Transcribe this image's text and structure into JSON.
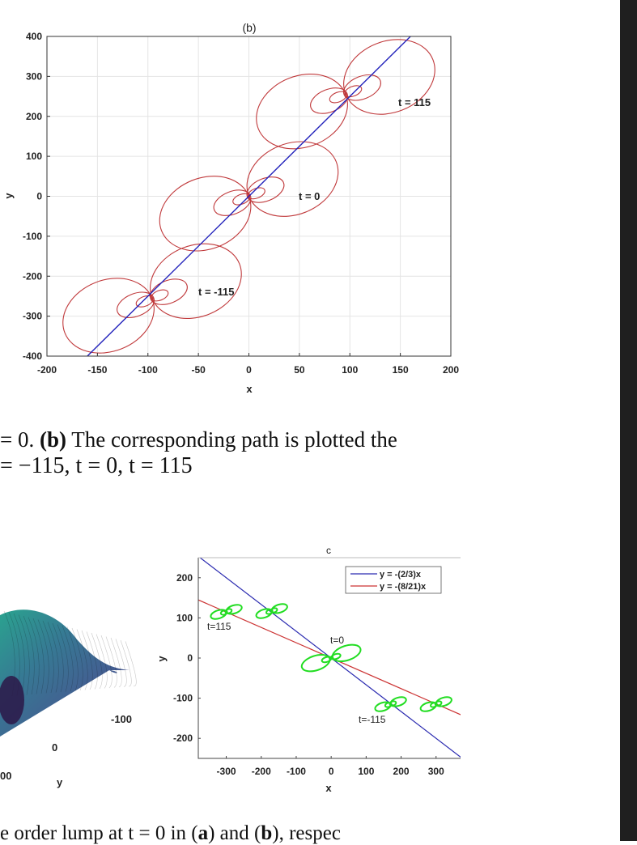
{
  "captions": {
    "line1_a": "= 0.",
    "line1_b": "(b)",
    "line1_c": " The corresponding path is plotted the",
    "line2": "= −115, t = 0, t = 115",
    "line3_a": "e order lump at t = 0 in (",
    "line3_b": "a",
    "line3_c": ") and (",
    "line3_d": "b",
    "line3_e": "), respec"
  },
  "surface_fragment": {
    "tick_labels": [
      "-100",
      "0",
      "00"
    ],
    "axis_label": "y"
  },
  "chart_data": [
    {
      "type": "line",
      "title": "(b)",
      "xlabel": "x",
      "ylabel": "y",
      "xlim": [
        -200,
        200
      ],
      "ylim": [
        -400,
        400
      ],
      "xticks": [
        -200,
        -150,
        -100,
        -50,
        0,
        50,
        100,
        150,
        200
      ],
      "yticks": [
        400,
        300,
        200,
        100,
        0,
        -100,
        -200,
        -300,
        -400
      ],
      "grid": true,
      "series": [
        {
          "color": "#2222bb",
          "x": [
            -200,
            200
          ],
          "y": [
            -500,
            500
          ]
        }
      ],
      "lumps": [
        {
          "label": "t = -115",
          "cx": -95.8,
          "cy": -255.5,
          "color": "#c0393b"
        },
        {
          "label": "t = 0",
          "cx": 0,
          "cy": 0,
          "color": "#c0393b"
        },
        {
          "label": "t = 115",
          "cx": 95.8,
          "cy": 255.5,
          "color": "#c0393b"
        }
      ],
      "annotations": [
        "t = -115",
        "t = 0",
        "t = 115"
      ]
    },
    {
      "type": "line",
      "title": "c",
      "xlabel": "x",
      "ylabel": "y",
      "xlim": [
        -380,
        370
      ],
      "ylim": [
        -250,
        250
      ],
      "xticks": [
        -300,
        -200,
        -100,
        0,
        100,
        200,
        300
      ],
      "yticks": [
        200,
        100,
        0,
        -100,
        -200
      ],
      "grid": false,
      "legend": "top-right",
      "series": [
        {
          "name": "y = -(2/3)x",
          "color": "#2a2ab0",
          "slope": -0.6667
        },
        {
          "name": "y = -(8/21)x",
          "color": "#cc3333",
          "slope": -0.381
        }
      ],
      "lumps": [
        {
          "x": -300,
          "y": 115
        },
        {
          "x": -170,
          "y": 117
        },
        {
          "x": 0,
          "y": 0
        },
        {
          "x": 170,
          "y": -115
        },
        {
          "x": 300,
          "y": -115
        }
      ],
      "annotations": [
        "t=115",
        "t=0",
        "t=-115"
      ]
    }
  ]
}
